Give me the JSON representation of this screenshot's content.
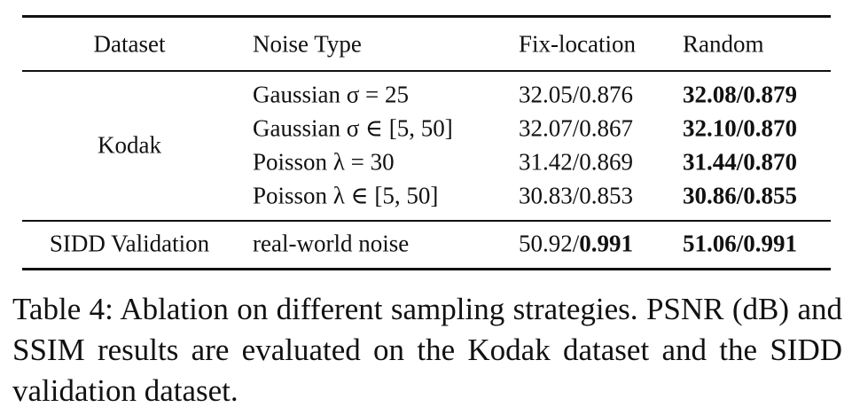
{
  "table": {
    "header": [
      "Dataset",
      "Noise Type",
      "Fix-location",
      "Random"
    ],
    "groups": [
      {
        "dataset": "Kodak",
        "rows": [
          {
            "noise": "Gaussian σ = 25",
            "fix": [
              {
                "text": "32.05/0.876",
                "bold": false
              }
            ],
            "random": [
              {
                "text": "32.08/0.879",
                "bold": true
              }
            ]
          },
          {
            "noise": "Gaussian σ ∈ [5, 50]",
            "fix": [
              {
                "text": "32.07/0.867",
                "bold": false
              }
            ],
            "random": [
              {
                "text": "32.10/0.870",
                "bold": true
              }
            ]
          },
          {
            "noise": "Poisson λ = 30",
            "fix": [
              {
                "text": "31.42/0.869",
                "bold": false
              }
            ],
            "random": [
              {
                "text": "31.44/0.870",
                "bold": true
              }
            ]
          },
          {
            "noise": "Poisson λ ∈ [5, 50]",
            "fix": [
              {
                "text": "30.83/0.853",
                "bold": false
              }
            ],
            "random": [
              {
                "text": "30.86/0.855",
                "bold": true
              }
            ]
          }
        ]
      },
      {
        "dataset": "SIDD Validation",
        "rows": [
          {
            "noise": "real-world noise",
            "fix": [
              {
                "text": "50.92/",
                "bold": false
              },
              {
                "text": "0.991",
                "bold": true
              }
            ],
            "random": [
              {
                "text": "51.06/0.991",
                "bold": true
              }
            ]
          }
        ]
      }
    ]
  },
  "caption": "Table 4: Ablation on different sampling strategies. PSNR (dB) and SSIM results are evaluated on the Kodak dataset and the SIDD validation dataset."
}
